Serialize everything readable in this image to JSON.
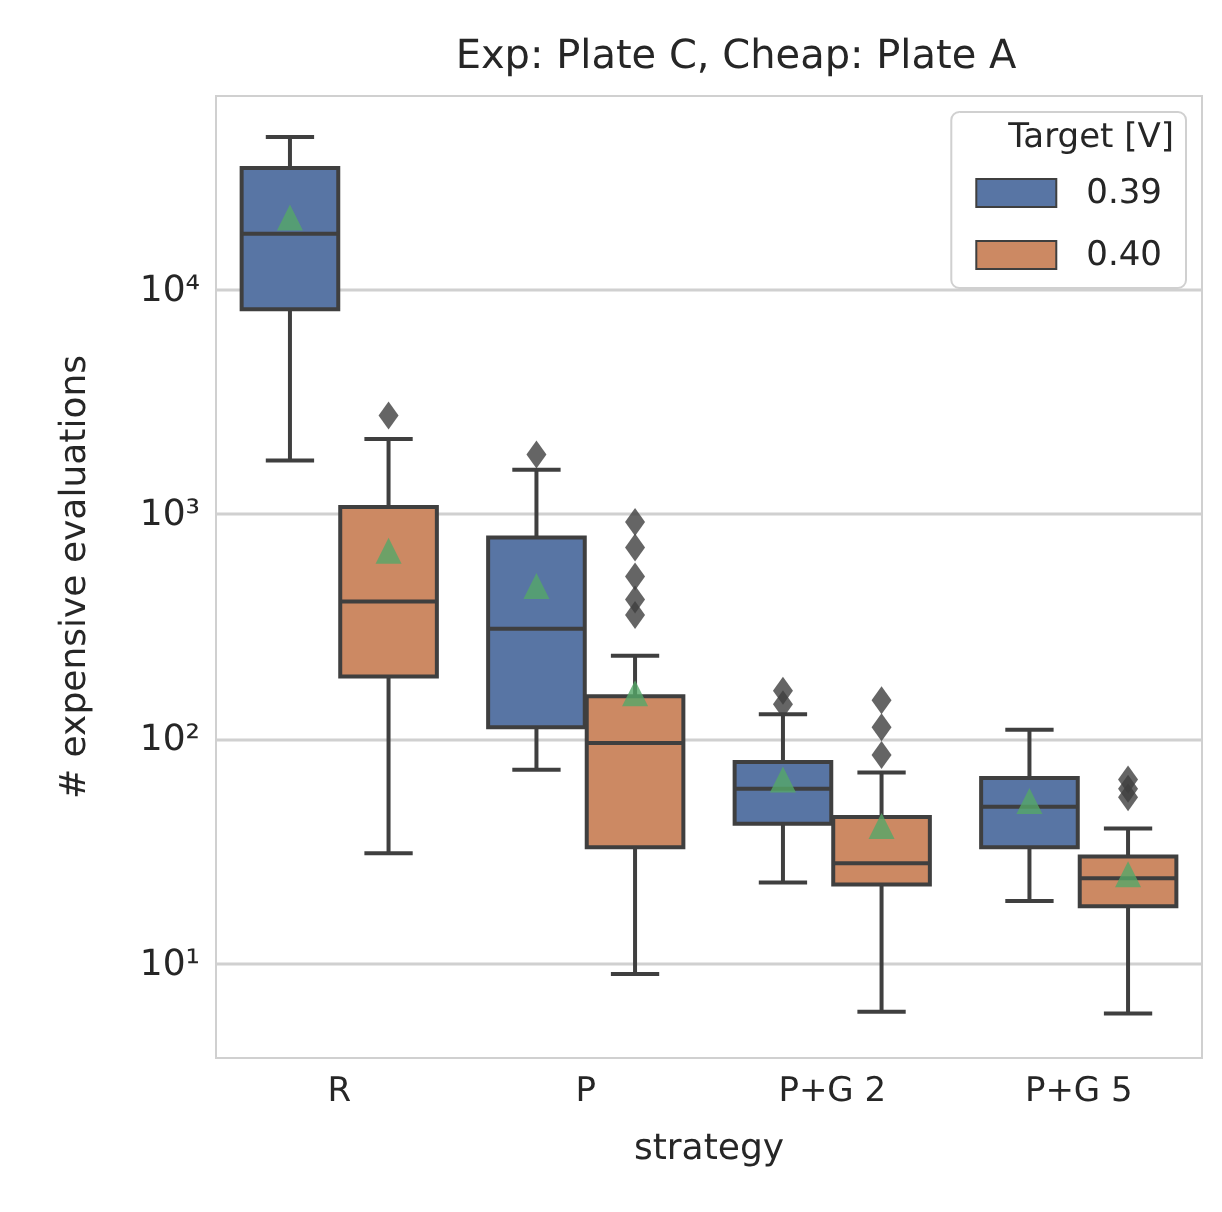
{
  "chart_data": {
    "type": "box",
    "title": "Exp: Plate C, Cheap: Plate A",
    "xlabel": "strategy",
    "ylabel": "# expensive evaluations",
    "categories": [
      "R",
      "P",
      "P+G 2",
      "P+G 5"
    ],
    "legend_title": "Target [V]",
    "legend": "top right",
    "log": true,
    "grid": "y",
    "marker": "triangle",
    "ylim": [
      3.8,
      73000
    ],
    "yticks": [
      {
        "value": 10,
        "label": "10¹"
      },
      {
        "value": 100,
        "label": "10²"
      },
      {
        "value": 1000,
        "label": "10³"
      },
      {
        "value": 10000,
        "label": "10⁴"
      }
    ],
    "series": [
      {
        "name": "0.39",
        "color": "#5875a4",
        "boxes": [
          {
            "low": 1740,
            "q1": 8200,
            "median": 17800,
            "q3": 34900,
            "high": 48000,
            "mean": 21000
          },
          {
            "low": 73,
            "q1": 113,
            "median": 310,
            "q3": 790,
            "high": 1580,
            "mean": 480,
            "outliers": [
              1850
            ]
          },
          {
            "low": 23,
            "q1": 42,
            "median": 60,
            "q3": 79,
            "high": 129,
            "mean": 66,
            "outliers": [
              143,
              164
            ]
          },
          {
            "low": 19,
            "q1": 33,
            "median": 50,
            "q3": 67,
            "high": 110,
            "mean": 53
          }
        ]
      },
      {
        "name": "0.40",
        "color": "#cc8963",
        "boxes": [
          {
            "low": 31,
            "q1": 190,
            "median": 410,
            "q3": 1080,
            "high": 2170,
            "mean": 690,
            "outliers": [
              2760
            ]
          },
          {
            "low": 9,
            "q1": 33,
            "median": 96,
            "q3": 155,
            "high": 235,
            "mean": 160,
            "outliers": [
              357,
              418,
              530,
              713,
              925
            ]
          },
          {
            "low": 6.1,
            "q1": 22.5,
            "median": 28,
            "q3": 45,
            "high": 71,
            "mean": 41,
            "outliers": [
              85,
              113,
              149
            ]
          },
          {
            "low": 6,
            "q1": 18,
            "median": 24,
            "q3": 30,
            "high": 40,
            "mean": 25,
            "outliers": [
              55,
              60,
              66
            ]
          }
        ]
      }
    ]
  }
}
